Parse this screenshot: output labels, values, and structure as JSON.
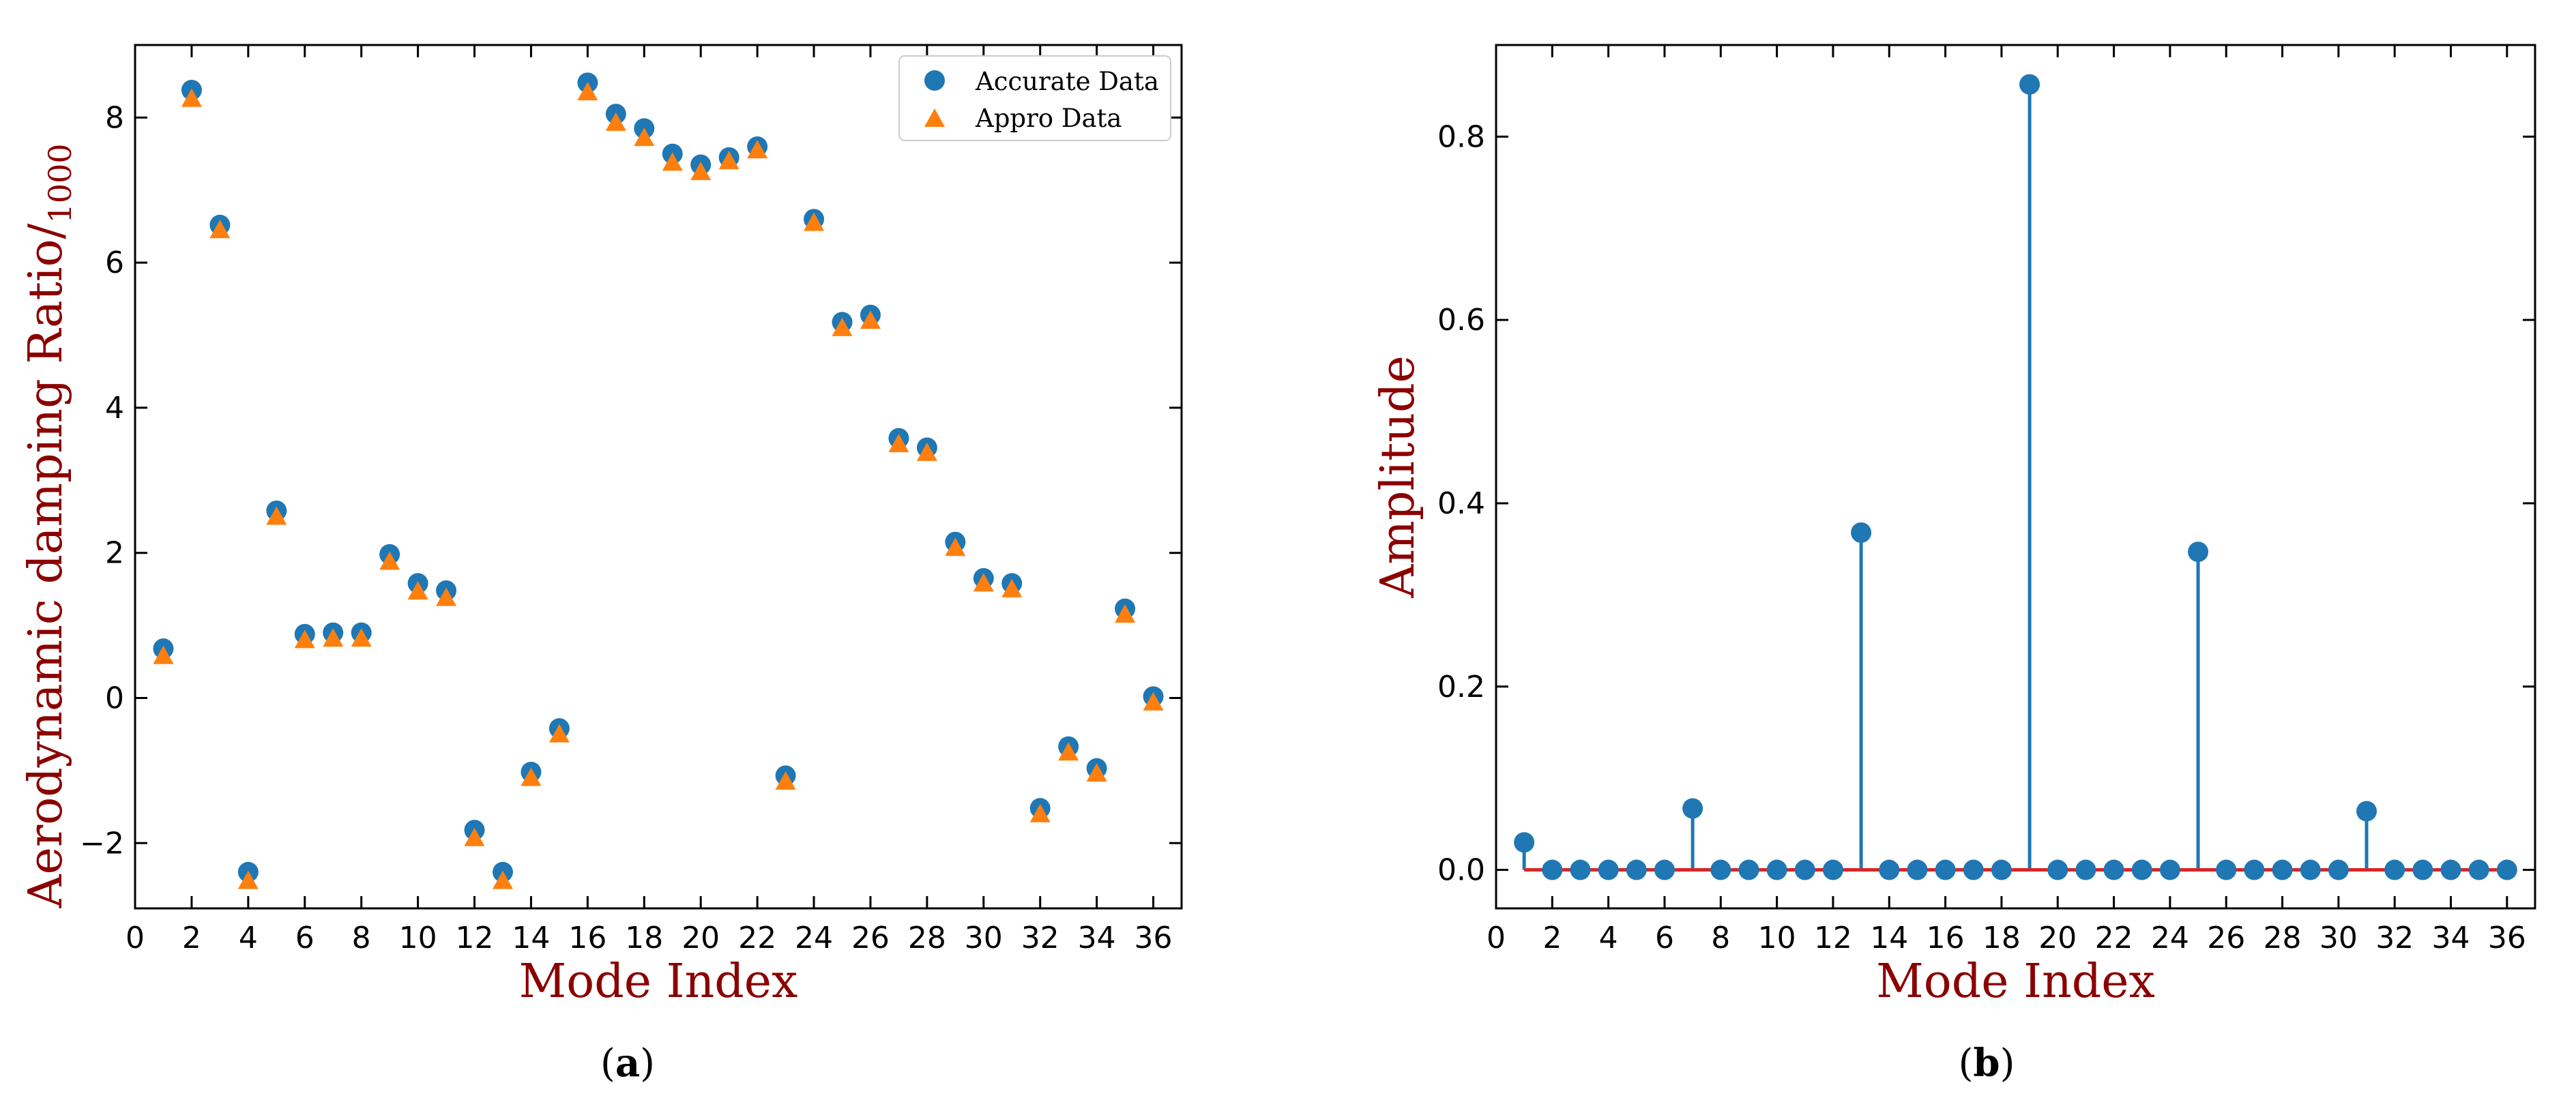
{
  "colors": {
    "accurate": "#1f77b4",
    "appro": "#ff7f0e",
    "stem": "#1f77b4",
    "baseline": "#d62728",
    "axis_title": "#8b0000"
  },
  "panels": [
    {
      "paren_open": "(",
      "letter": "a",
      "paren_close": ")"
    },
    {
      "paren_open": "(",
      "letter": "b",
      "paren_close": ")"
    }
  ],
  "chart_data": [
    {
      "type": "scatter",
      "title": "",
      "xlabel": "Mode Index",
      "ylabel_main": "Aerodynamic damping Ratio/",
      "ylabel_sub": "1000",
      "xlim": [
        0,
        37
      ],
      "ylim": [
        -2.9,
        9.0
      ],
      "xticks": [
        0,
        2,
        4,
        6,
        8,
        10,
        12,
        14,
        16,
        18,
        20,
        22,
        24,
        26,
        28,
        30,
        32,
        34,
        36
      ],
      "yticks": [
        -2,
        0,
        2,
        4,
        6,
        8
      ],
      "ytick_labels": [
        "−2",
        "0",
        "2",
        "4",
        "6",
        "8"
      ],
      "legend_position": "top-right",
      "x": [
        1,
        2,
        3,
        4,
        5,
        6,
        7,
        8,
        9,
        10,
        11,
        12,
        13,
        14,
        15,
        16,
        17,
        18,
        19,
        20,
        21,
        22,
        23,
        24,
        25,
        26,
        27,
        28,
        29,
        30,
        31,
        32,
        33,
        34,
        35,
        36
      ],
      "series": [
        {
          "name": "Accurate Data",
          "marker": "circle",
          "values": [
            0.68,
            8.38,
            6.52,
            -2.4,
            2.58,
            0.88,
            0.9,
            0.9,
            1.98,
            1.58,
            1.48,
            -1.82,
            -2.4,
            -1.02,
            -0.42,
            8.48,
            8.05,
            7.85,
            7.5,
            7.35,
            7.45,
            7.6,
            -1.07,
            6.6,
            5.18,
            5.28,
            3.58,
            3.45,
            2.15,
            1.65,
            1.58,
            -1.52,
            -0.67,
            -0.97,
            1.23,
            0.02
          ]
        },
        {
          "name": "Appro Data",
          "marker": "triangle",
          "values": [
            0.58,
            8.26,
            6.45,
            -2.52,
            2.5,
            0.8,
            0.82,
            0.82,
            1.88,
            1.47,
            1.38,
            -1.93,
            -2.52,
            -1.1,
            -0.5,
            8.35,
            7.93,
            7.72,
            7.38,
            7.25,
            7.4,
            7.55,
            -1.15,
            6.55,
            5.1,
            5.2,
            3.5,
            3.38,
            2.07,
            1.58,
            1.5,
            -1.6,
            -0.75,
            -1.04,
            1.15,
            -0.06
          ]
        }
      ]
    },
    {
      "type": "stem",
      "title": "",
      "xlabel": "Mode Index",
      "ylabel": "Amplitude",
      "xlim": [
        0,
        37
      ],
      "ylim": [
        -0.042,
        0.9
      ],
      "xticks": [
        0,
        2,
        4,
        6,
        8,
        10,
        12,
        14,
        16,
        18,
        20,
        22,
        24,
        26,
        28,
        30,
        32,
        34,
        36
      ],
      "yticks": [
        0.0,
        0.2,
        0.4,
        0.6,
        0.8
      ],
      "ytick_labels": [
        "0.0",
        "0.2",
        "0.4",
        "0.6",
        "0.8"
      ],
      "x": [
        1,
        2,
        3,
        4,
        5,
        6,
        7,
        8,
        9,
        10,
        11,
        12,
        13,
        14,
        15,
        16,
        17,
        18,
        19,
        20,
        21,
        22,
        23,
        24,
        25,
        26,
        27,
        28,
        29,
        30,
        31,
        32,
        33,
        34,
        35,
        36
      ],
      "values": [
        0.03,
        0,
        0,
        0,
        0,
        0,
        0.067,
        0,
        0,
        0,
        0,
        0,
        0.368,
        0,
        0,
        0,
        0,
        0,
        0.857,
        0,
        0,
        0,
        0,
        0,
        0.347,
        0,
        0,
        0,
        0,
        0,
        0.064,
        0,
        0,
        0,
        0,
        0
      ]
    }
  ]
}
